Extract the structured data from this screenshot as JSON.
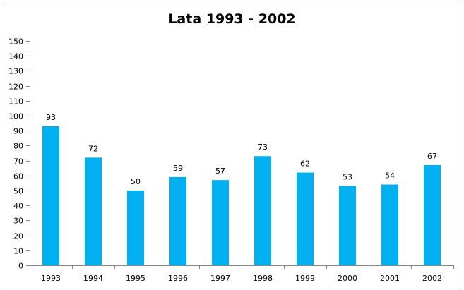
{
  "chart_data": {
    "type": "bar",
    "title": "Lata 1993 - 2002",
    "categories": [
      "1993",
      "1994",
      "1995",
      "1996",
      "1997",
      "1998",
      "1999",
      "2000",
      "2001",
      "2002"
    ],
    "values": [
      93,
      72,
      50,
      59,
      57,
      73,
      62,
      53,
      54,
      67
    ],
    "xlabel": "",
    "ylabel": "",
    "ylim": [
      0,
      150
    ],
    "yticks": [
      0,
      10,
      20,
      30,
      40,
      50,
      60,
      70,
      80,
      90,
      100,
      110,
      120,
      130,
      140,
      150
    ],
    "grid": false,
    "legend": "none",
    "bar_color": "#00B0F0"
  }
}
